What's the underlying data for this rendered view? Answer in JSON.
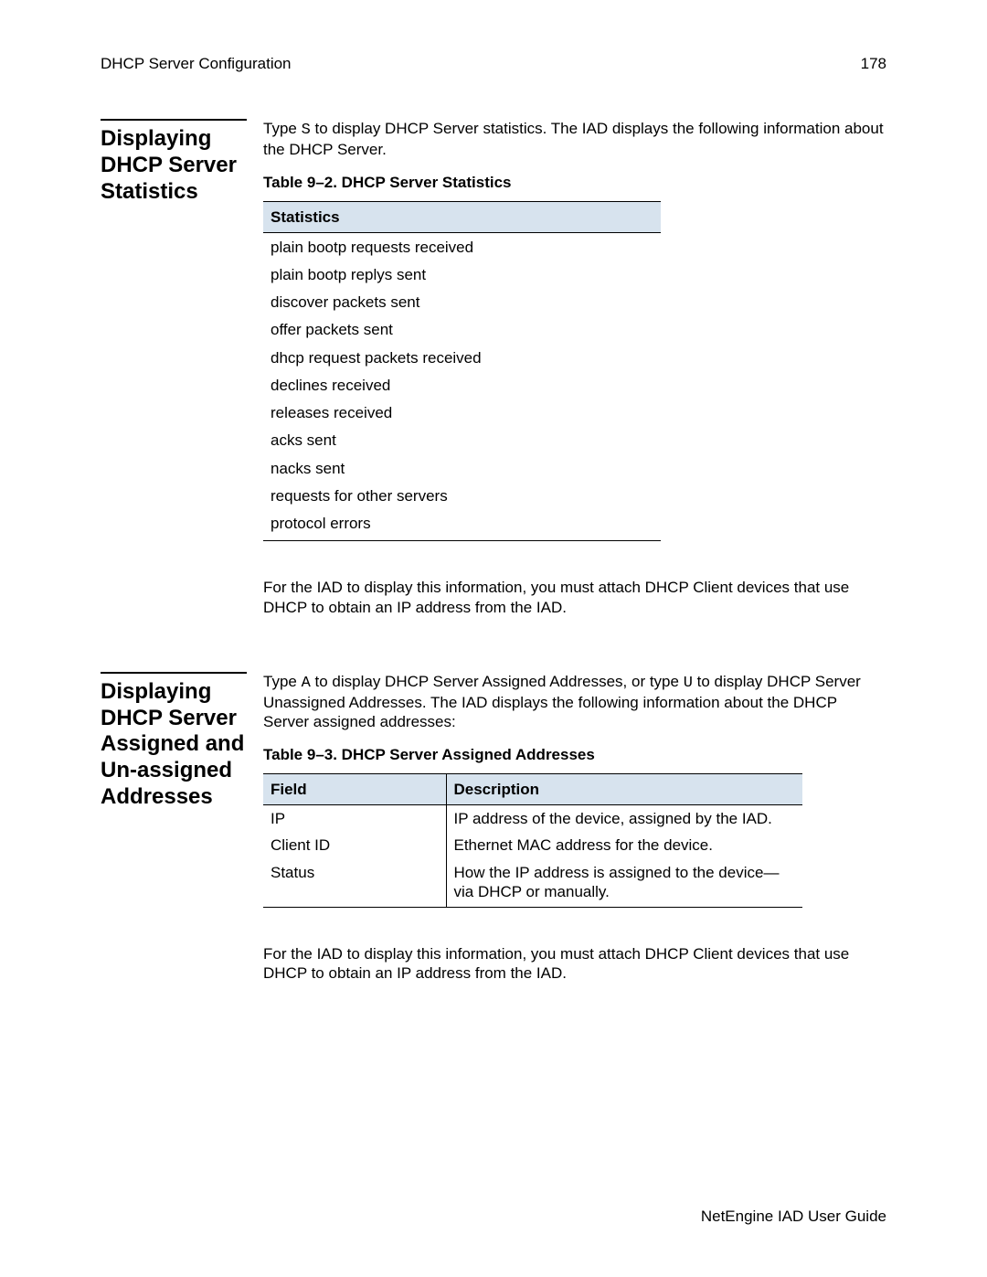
{
  "header": {
    "title": "DHCP Server Configuration",
    "page_number": "178"
  },
  "section1": {
    "side_heading": "Displaying DHCP Server Statistics",
    "intro_pre": "Type ",
    "intro_code": "S",
    "intro_post": " to display DHCP Server statistics. The IAD displays the following information about the DHCP Server.",
    "table_caption": "Table 9–2.  DHCP Server Statistics",
    "table_header": "Statistics",
    "rows": [
      "plain bootp requests received",
      "plain bootp replys sent",
      "discover packets sent",
      "offer packets sent",
      "dhcp request packets received",
      "declines received",
      "releases received",
      "acks sent",
      "nacks sent",
      "requests for other servers",
      "protocol errors"
    ],
    "note": "For the IAD to display this information, you must attach DHCP Client devices that use DHCP to obtain an IP address from the IAD."
  },
  "section2": {
    "side_heading": "Displaying DHCP Server Assigned and Un-assigned Addresses",
    "intro_pre": "Type ",
    "intro_code1": "A",
    "intro_mid": " to display DHCP Server Assigned Addresses, or type ",
    "intro_code2": "U",
    "intro_post": " to display DHCP Server Unassigned Addresses. The IAD displays the following information about the DHCP Server assigned addresses:",
    "table_caption": "Table 9–3.  DHCP Server Assigned Addresses",
    "col1": "Field",
    "col2": "Description",
    "rows": [
      {
        "field": "IP",
        "desc": "IP address of the device, assigned by the IAD."
      },
      {
        "field": "Client ID",
        "desc": "Ethernet MAC address for the device."
      },
      {
        "field": "Status",
        "desc": "How the IP address is assigned to the device—via DHCP or manually."
      }
    ],
    "note": "For the IAD to display this information, you must attach DHCP Client devices that use DHCP to obtain an IP address from the IAD."
  },
  "footer": "NetEngine IAD User Guide"
}
